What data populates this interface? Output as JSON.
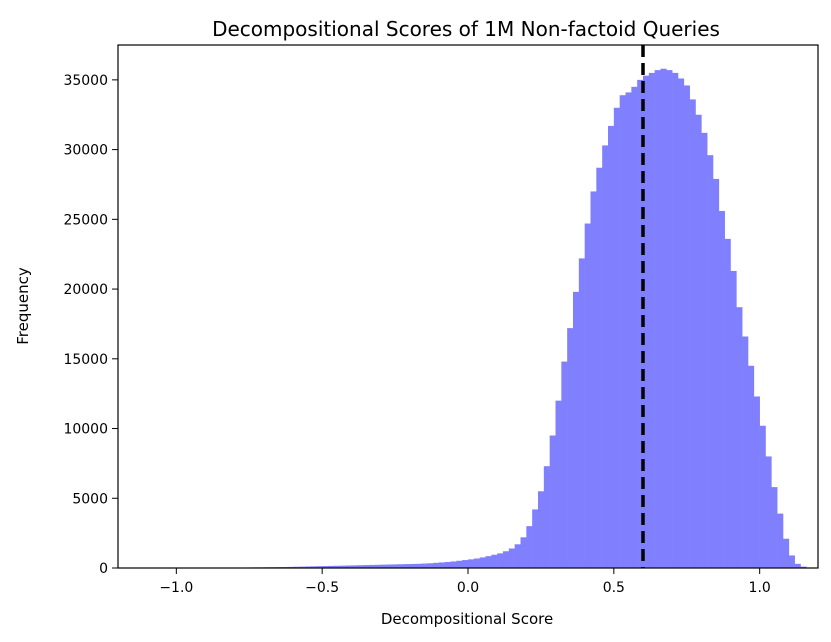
{
  "colors": {
    "bar": "#8080ff",
    "threshold_line": "#000000"
  },
  "chart_data": {
    "type": "bar",
    "title": "Decompositional Scores of 1M Non-factoid Queries",
    "xlabel": "Decompositional Score",
    "ylabel": "Frequency",
    "xlim": [
      -1.2,
      1.2
    ],
    "ylim": [
      0,
      37500
    ],
    "xticks": [
      -1.0,
      -0.5,
      0.0,
      0.5,
      1.0
    ],
    "xtick_labels": [
      "−1.0",
      "−0.5",
      "0.0",
      "0.5",
      "1.0"
    ],
    "yticks": [
      0,
      5000,
      10000,
      15000,
      20000,
      25000,
      30000,
      35000
    ],
    "ytick_labels": [
      "0",
      "5000",
      "10000",
      "15000",
      "20000",
      "25000",
      "30000",
      "35000"
    ],
    "grid": false,
    "bin_width": 0.02,
    "bins_start": -1.1,
    "values": [
      5,
      6,
      8,
      8,
      10,
      10,
      12,
      12,
      15,
      15,
      18,
      20,
      22,
      25,
      28,
      30,
      35,
      40,
      45,
      50,
      55,
      60,
      65,
      70,
      80,
      90,
      100,
      110,
      120,
      130,
      140,
      150,
      160,
      170,
      180,
      190,
      200,
      210,
      220,
      230,
      240,
      250,
      260,
      270,
      280,
      290,
      300,
      320,
      340,
      370,
      400,
      430,
      470,
      520,
      570,
      620,
      680,
      760,
      850,
      950,
      1050,
      1200,
      1400,
      1700,
      2200,
      3000,
      4200,
      5500,
      7300,
      9500,
      12000,
      14800,
      17200,
      19800,
      22200,
      24700,
      27000,
      28700,
      30300,
      31700,
      33000,
      33900,
      34100,
      34500,
      35000,
      35300,
      35500,
      35700,
      35800,
      35700,
      35500,
      35100,
      34600,
      33600,
      32500,
      31200,
      29600,
      27900,
      25600,
      23600,
      21300,
      18700,
      16600,
      14500,
      12300,
      10200,
      8000,
      5800,
      3900,
      2100,
      900,
      300,
      100,
      30,
      10
    ],
    "threshold": {
      "x": 0.6,
      "style": "dashed"
    }
  }
}
